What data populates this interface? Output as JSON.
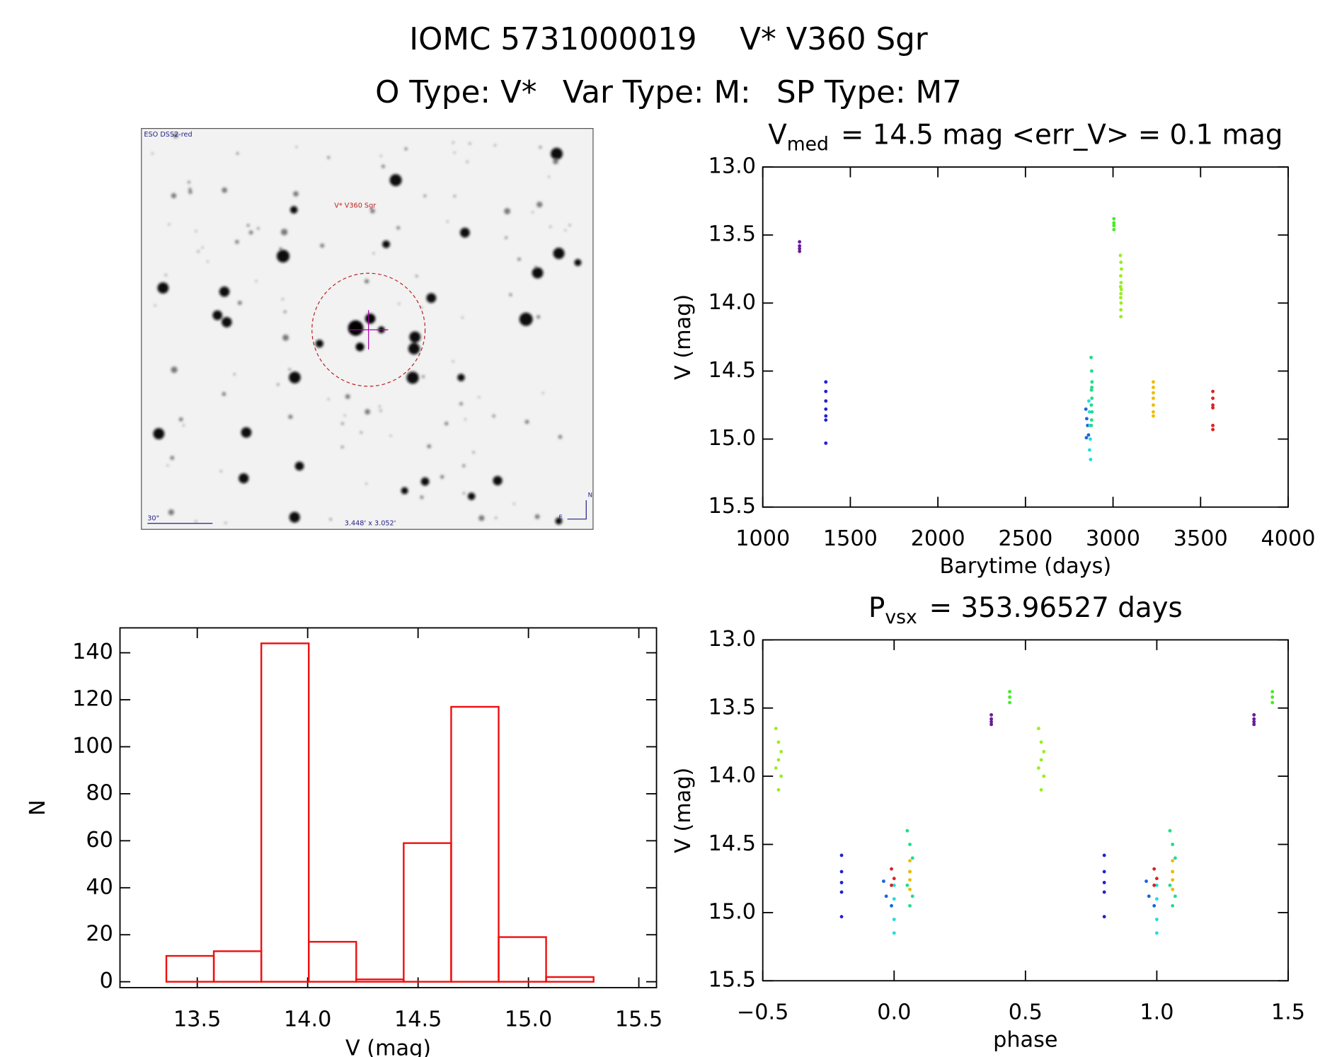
{
  "header": {
    "id": "IOMC 5731000019",
    "name": "V* V360 Sgr",
    "otype": "O Type: V*",
    "vartype": "Var Type: M:",
    "sptype": "SP Type: M7"
  },
  "image": {
    "survey": "ESO DSS2-red",
    "target": "V* V360 Sgr",
    "scale": "30\"",
    "fov": "3.448' x 3.052'",
    "north": "N",
    "east": "E"
  },
  "chart_data": [
    {
      "type": "scatter",
      "title_parts": [
        "V",
        "med",
        "= 14.5 mag <err_V> = 0.1 mag"
      ],
      "x_label": "Barytime (days)",
      "y_label": "V (mag)",
      "xlim": [
        1000,
        4000
      ],
      "xticks": [
        1000,
        1500,
        2000,
        2500,
        3000,
        3500,
        4000
      ],
      "ylim": [
        15.5,
        13.0
      ],
      "yticks": [
        {
          "value": 13.0,
          "label": "13.0"
        },
        13.5,
        {
          "value": 14.0,
          "label": "14.0"
        },
        14.5,
        {
          "value": 15.0,
          "label": "15.0"
        },
        15.5
      ],
      "series": [
        {
          "color": "#6a1b9a",
          "x": [
            1210,
            1210,
            1210,
            1210
          ],
          "values": [
            13.55,
            13.58,
            13.6,
            13.62
          ]
        },
        {
          "color": "#2222cc",
          "x": [
            1360,
            1360,
            1360,
            1360,
            1360,
            1360,
            1360
          ],
          "values": [
            14.58,
            14.65,
            14.72,
            14.78,
            14.83,
            14.86,
            15.03
          ]
        },
        {
          "color": "#1a66dd",
          "x": [
            2845,
            2850,
            2855,
            2860,
            2848
          ],
          "values": [
            14.78,
            14.85,
            14.9,
            14.97,
            14.99
          ]
        },
        {
          "color": "#22dddd",
          "x": [
            2862,
            2865,
            2868,
            2870,
            2866,
            2872
          ],
          "values": [
            14.72,
            14.8,
            14.9,
            15.0,
            15.08,
            15.15
          ]
        },
        {
          "color": "#22dd88",
          "x": [
            2875,
            2878,
            2880,
            2877,
            2879,
            2876,
            2880,
            2878,
            2876,
            2879
          ],
          "values": [
            14.4,
            14.5,
            14.58,
            14.64,
            14.7,
            14.75,
            14.8,
            14.86,
            14.9,
            14.62
          ]
        },
        {
          "color": "#44ee22",
          "x": [
            3005,
            3005,
            3005,
            3005
          ],
          "values": [
            13.38,
            13.41,
            13.43,
            13.46
          ]
        },
        {
          "color": "#99ee22",
          "x": [
            3042,
            3045,
            3048,
            3044,
            3046,
            3043,
            3047,
            3045,
            3044,
            3046,
            3045,
            3045
          ],
          "values": [
            13.65,
            13.7,
            13.75,
            13.8,
            13.85,
            13.88,
            13.9,
            13.93,
            13.96,
            14.0,
            14.05,
            14.1
          ]
        },
        {
          "color": "#eebb00",
          "x": [
            3230,
            3230,
            3230,
            3230,
            3230,
            3230,
            3230
          ],
          "values": [
            14.58,
            14.62,
            14.66,
            14.7,
            14.75,
            14.8,
            14.83
          ]
        },
        {
          "color": "#dd2222",
          "x": [
            3570,
            3570,
            3570,
            3570,
            3570,
            3570
          ],
          "values": [
            14.65,
            14.7,
            14.75,
            14.77,
            14.9,
            14.93
          ]
        }
      ]
    },
    {
      "type": "scatter",
      "title_parts": [
        "P",
        "vsx",
        "= 353.96527 days"
      ],
      "x_label": "phase",
      "y_label": "V (mag)",
      "xlim": [
        -0.5,
        1.5
      ],
      "xticks": [
        {
          "value": -0.5,
          "label": "−0.5"
        },
        {
          "value": 0.0,
          "label": "0.0"
        },
        0.5,
        {
          "value": 1.0,
          "label": "1.0"
        },
        1.5
      ],
      "ylim": [
        15.5,
        13.0
      ],
      "yticks": [
        {
          "value": 13.0,
          "label": "13.0"
        },
        13.5,
        {
          "value": 14.0,
          "label": "14.0"
        },
        14.5,
        {
          "value": 15.0,
          "label": "15.0"
        },
        15.5
      ],
      "series": [
        {
          "color": "#6a1b9a",
          "x": [
            0.37,
            0.37,
            0.37,
            0.37,
            1.37,
            1.37,
            1.37,
            1.37
          ],
          "values": [
            13.55,
            13.58,
            13.6,
            13.62,
            13.55,
            13.58,
            13.6,
            13.62
          ]
        },
        {
          "color": "#2222cc",
          "x": [
            -0.2,
            -0.2,
            -0.2,
            -0.2,
            -0.2,
            0.8,
            0.8,
            0.8,
            0.8,
            0.8
          ],
          "values": [
            14.58,
            14.7,
            14.78,
            14.85,
            15.03,
            14.58,
            14.7,
            14.78,
            14.85,
            15.03
          ]
        },
        {
          "color": "#1a66dd",
          "x": [
            -0.04,
            -0.03,
            -0.01,
            0.96,
            0.97,
            0.99
          ],
          "values": [
            14.77,
            14.88,
            14.95,
            14.77,
            14.88,
            14.95
          ]
        },
        {
          "color": "#22dddd",
          "x": [
            0.0,
            0.0,
            0.0,
            0.0,
            1.0,
            1.0,
            1.0,
            1.0
          ],
          "values": [
            14.8,
            14.9,
            15.05,
            15.15,
            14.8,
            14.9,
            15.05,
            15.15
          ]
        },
        {
          "color": "#22dd88",
          "x": [
            0.05,
            0.06,
            0.07,
            0.06,
            0.05,
            0.07,
            0.06,
            1.05,
            1.06,
            1.07,
            1.06,
            1.05,
            1.07,
            1.06
          ],
          "values": [
            14.4,
            14.5,
            14.6,
            14.7,
            14.8,
            14.88,
            14.95,
            14.4,
            14.5,
            14.6,
            14.7,
            14.8,
            14.88,
            14.95
          ]
        },
        {
          "color": "#44ee22",
          "x": [
            0.44,
            0.44,
            0.44,
            1.44,
            1.44,
            1.44
          ],
          "values": [
            13.38,
            13.42,
            13.46,
            13.38,
            13.42,
            13.46
          ]
        },
        {
          "color": "#99ee22",
          "x": [
            -0.45,
            -0.44,
            -0.43,
            -0.44,
            -0.45,
            -0.43,
            -0.44,
            0.55,
            0.56,
            0.57,
            0.56,
            0.55,
            0.57,
            0.56
          ],
          "values": [
            13.65,
            13.75,
            13.82,
            13.88,
            13.94,
            14.0,
            14.1,
            13.65,
            13.75,
            13.82,
            13.88,
            13.94,
            14.0,
            14.1
          ]
        },
        {
          "color": "#eebb00",
          "x": [
            0.06,
            0.06,
            0.06,
            0.06,
            1.06,
            1.06,
            1.06,
            1.06
          ],
          "values": [
            14.62,
            14.7,
            14.76,
            14.83,
            14.62,
            14.7,
            14.76,
            14.83
          ]
        },
        {
          "color": "#dd2222",
          "x": [
            -0.01,
            0.0,
            -0.01,
            0.99,
            1.0,
            0.99
          ],
          "values": [
            14.68,
            14.75,
            14.8,
            14.68,
            14.75,
            14.8
          ]
        }
      ]
    },
    {
      "type": "histogram",
      "x_label": "V (mag)",
      "y_label": "N",
      "color": "#ee1111",
      "bins": [
        13.36,
        13.575,
        13.79,
        14.005,
        14.22,
        14.435,
        14.65,
        14.865,
        15.08,
        15.295
      ],
      "counts": [
        11,
        13,
        144,
        17,
        1,
        59,
        117,
        19,
        2
      ],
      "xlim": [
        13.15,
        15.58
      ],
      "xticks": [
        13.5,
        {
          "value": 14.0,
          "label": "14.0"
        },
        14.5,
        {
          "value": 15.0,
          "label": "15.0"
        },
        15.5
      ],
      "ylim": [
        -2.5,
        150.6
      ],
      "yticks": [
        0,
        20,
        40,
        60,
        80,
        100,
        120,
        140
      ]
    }
  ]
}
